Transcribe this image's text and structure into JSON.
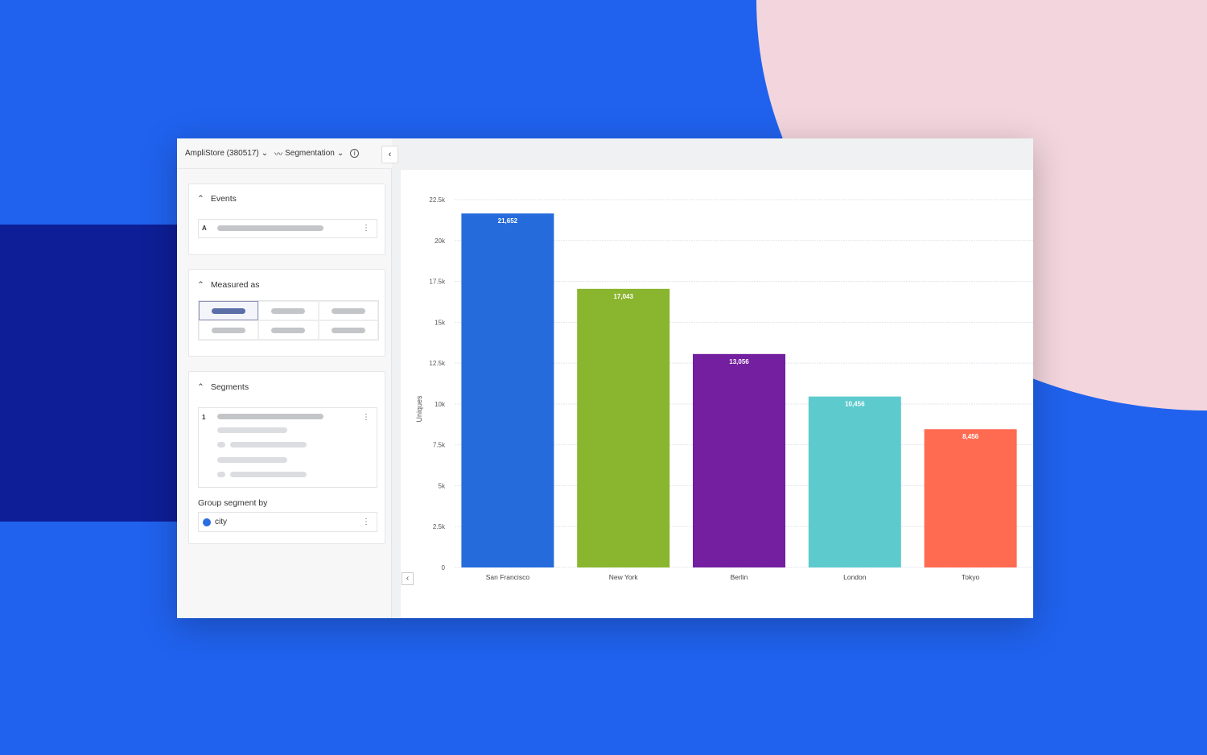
{
  "header": {
    "project": "AmpliStore (380517)",
    "chart_type": "Segmentation"
  },
  "sidebar": {
    "events": {
      "title": "Events",
      "item_letter": "A"
    },
    "measured": {
      "title": "Measured as"
    },
    "segments": {
      "title": "Segments",
      "item_number": "1",
      "group_label": "Group segment by",
      "group_value": "city"
    }
  },
  "chart_data": {
    "type": "bar",
    "categories": [
      "San Francisco",
      "New York",
      "Berlin",
      "London",
      "Tokyo"
    ],
    "values": [
      21652,
      17043,
      13056,
      10456,
      8456
    ],
    "data_labels": [
      "21,652",
      "17,043",
      "13,056",
      "10,456",
      "8,456"
    ],
    "colors": [
      "#256BDB",
      "#8AB52E",
      "#741EA0",
      "#5DCBCE",
      "#FF6B51"
    ],
    "ylabel": "Uniques",
    "ylim": [
      0,
      22500
    ],
    "yticks": [
      0,
      2500,
      5000,
      7500,
      10000,
      12500,
      15000,
      17500,
      20000,
      22500
    ],
    "ytick_labels": [
      "0",
      "2.5k",
      "5k",
      "7.5k",
      "10k",
      "12.5k",
      "15k",
      "17.5k",
      "20k",
      "22.5k"
    ],
    "grid": true
  }
}
